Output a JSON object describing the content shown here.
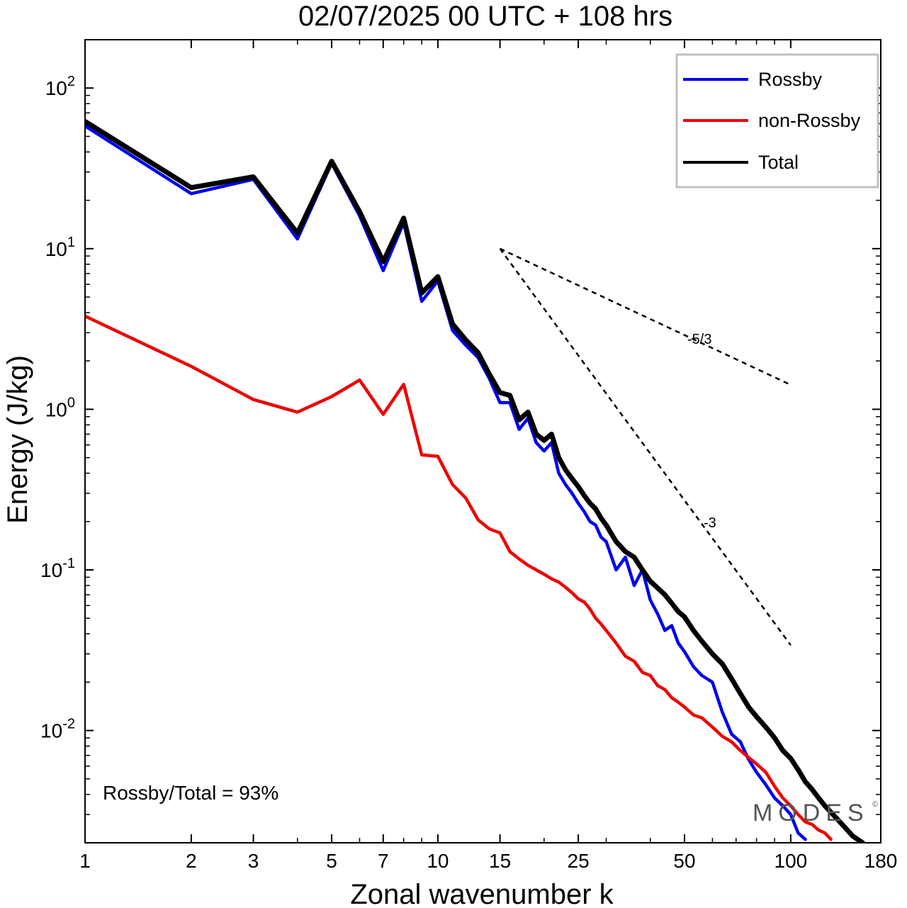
{
  "chart_data": {
    "type": "line",
    "title": "02/07/2025  00 UTC  + 108 hrs",
    "xlabel": "Zonal wavenumber k",
    "ylabel": "Energy (J/kg)",
    "x_scale": "log",
    "y_scale": "log",
    "xlim": [
      1,
      180
    ],
    "ylim": [
      0.002,
      200
    ],
    "x_ticks": [
      {
        "value": 1,
        "label": "1"
      },
      {
        "value": 2,
        "label": "2"
      },
      {
        "value": 3,
        "label": "3"
      },
      {
        "value": 5,
        "label": "5"
      },
      {
        "value": 7,
        "label": "7"
      },
      {
        "value": 10,
        "label": "10"
      },
      {
        "value": 15,
        "label": "15"
      },
      {
        "value": 25,
        "label": "25"
      },
      {
        "value": 50,
        "label": "50"
      },
      {
        "value": 100,
        "label": "100"
      },
      {
        "value": 180,
        "label": "180"
      }
    ],
    "y_ticks": [
      {
        "value": 0.01,
        "base": "10",
        "exp": "-2"
      },
      {
        "value": 0.1,
        "base": "10",
        "exp": "-1"
      },
      {
        "value": 1,
        "base": "10",
        "exp": "0"
      },
      {
        "value": 10,
        "base": "10",
        "exp": "1"
      },
      {
        "value": 100,
        "base": "10",
        "exp": "2"
      }
    ],
    "legend_position": "top-right",
    "series": [
      {
        "name": "Rossby",
        "color": "#0000ee",
        "x": [
          1,
          2,
          3,
          4,
          5,
          6,
          7,
          8,
          9,
          10,
          11,
          12,
          13,
          14,
          15,
          16,
          17,
          18,
          19,
          20,
          21,
          22,
          23,
          24,
          25,
          26,
          27,
          28,
          29,
          30,
          32,
          34,
          36,
          38,
          40,
          42,
          44,
          46,
          48,
          50,
          53,
          56,
          60,
          64,
          68,
          72,
          76,
          80,
          85,
          90,
          95,
          100,
          105,
          110
        ],
        "y": [
          58,
          22,
          27,
          11.5,
          34,
          16,
          7.3,
          14.5,
          4.7,
          6.3,
          3.1,
          2.5,
          2.1,
          1.55,
          1.1,
          1.1,
          0.75,
          0.88,
          0.62,
          0.55,
          0.62,
          0.4,
          0.34,
          0.3,
          0.26,
          0.23,
          0.2,
          0.19,
          0.16,
          0.15,
          0.1,
          0.12,
          0.08,
          0.1,
          0.065,
          0.053,
          0.042,
          0.045,
          0.035,
          0.031,
          0.025,
          0.022,
          0.02,
          0.013,
          0.0095,
          0.0085,
          0.0066,
          0.0055,
          0.0046,
          0.0038,
          0.0034,
          0.003,
          0.0023,
          0.0021
        ]
      },
      {
        "name": "non-Rossby",
        "color": "#ee0000",
        "x": [
          1,
          2,
          3,
          4,
          5,
          6,
          7,
          8,
          9,
          10,
          11,
          12,
          13,
          14,
          15,
          16,
          17,
          18,
          19,
          20,
          21,
          22,
          23,
          24,
          25,
          26,
          27,
          28,
          29,
          30,
          32,
          34,
          36,
          38,
          40,
          42,
          44,
          46,
          48,
          50,
          53,
          56,
          60,
          64,
          68,
          72,
          76,
          80,
          85,
          90,
          95,
          100,
          105,
          110,
          115,
          120,
          125,
          130
        ],
        "y": [
          3.8,
          1.85,
          1.15,
          0.96,
          1.2,
          1.52,
          0.93,
          1.43,
          0.52,
          0.51,
          0.34,
          0.28,
          0.205,
          0.18,
          0.17,
          0.13,
          0.117,
          0.107,
          0.1,
          0.094,
          0.088,
          0.084,
          0.078,
          0.072,
          0.066,
          0.063,
          0.057,
          0.05,
          0.046,
          0.042,
          0.035,
          0.029,
          0.027,
          0.023,
          0.022,
          0.019,
          0.018,
          0.016,
          0.015,
          0.014,
          0.0125,
          0.012,
          0.0105,
          0.0092,
          0.0085,
          0.0075,
          0.0068,
          0.0062,
          0.0055,
          0.0045,
          0.0038,
          0.0034,
          0.003,
          0.0027,
          0.0026,
          0.0024,
          0.0023,
          0.0021
        ]
      },
      {
        "name": "Total",
        "color": "#000000",
        "x": [
          1,
          2,
          3,
          4,
          5,
          6,
          7,
          8,
          9,
          10,
          11,
          12,
          13,
          14,
          15,
          16,
          17,
          18,
          19,
          20,
          21,
          22,
          23,
          24,
          25,
          26,
          27,
          28,
          29,
          30,
          32,
          34,
          36,
          38,
          40,
          42,
          44,
          46,
          48,
          50,
          53,
          56,
          60,
          64,
          68,
          72,
          76,
          80,
          85,
          90,
          95,
          100,
          105,
          110,
          115,
          120,
          125,
          130,
          140,
          150,
          160
        ],
        "y": [
          62,
          24,
          28,
          12.5,
          35,
          17,
          8.3,
          15.5,
          5.3,
          6.7,
          3.4,
          2.7,
          2.25,
          1.65,
          1.27,
          1.22,
          0.86,
          0.96,
          0.7,
          0.64,
          0.7,
          0.5,
          0.42,
          0.37,
          0.33,
          0.29,
          0.26,
          0.24,
          0.21,
          0.19,
          0.15,
          0.13,
          0.12,
          0.1,
          0.085,
          0.077,
          0.07,
          0.062,
          0.055,
          0.051,
          0.042,
          0.036,
          0.03,
          0.026,
          0.021,
          0.017,
          0.014,
          0.0122,
          0.0105,
          0.009,
          0.0075,
          0.0067,
          0.0057,
          0.0048,
          0.0043,
          0.0038,
          0.0034,
          0.0031,
          0.0026,
          0.0022,
          0.002
        ]
      }
    ],
    "reference_lines": [
      {
        "label": "-5/3",
        "x": [
          15,
          100
        ],
        "y": [
          10,
          1.42
        ]
      },
      {
        "label": "-3",
        "x": [
          15,
          100
        ],
        "y": [
          10,
          0.034
        ]
      }
    ],
    "annotation": "Rossby/Total = 93%",
    "watermark": "MODES",
    "watermark_symbol": "©"
  }
}
